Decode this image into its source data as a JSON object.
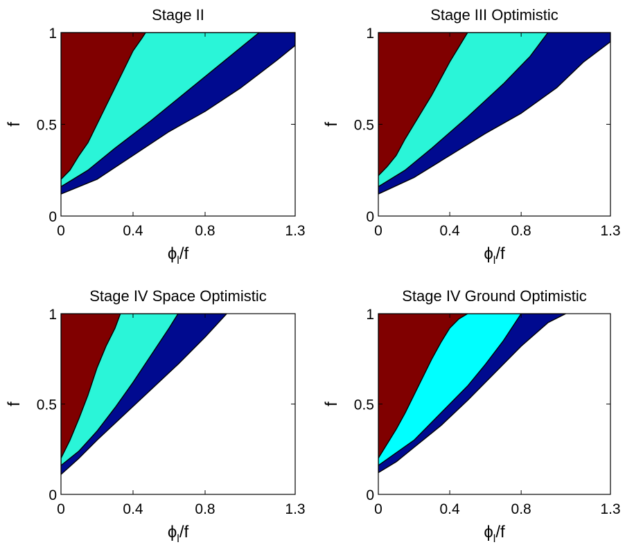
{
  "chart_data": [
    {
      "type": "contour",
      "title": "Stage II",
      "xlabel_main": "ϕ",
      "xlabel_sub": "l",
      "xlabel_rest": "/f",
      "ylabel": "f",
      "x_ticks": [
        "0",
        "0.4",
        "0.8",
        "1.3"
      ],
      "x_tick_values": [
        0,
        0.4,
        0.8,
        1.3
      ],
      "y_ticks": [
        "0",
        "0.5",
        "1"
      ],
      "y_tick_values": [
        0,
        0.5,
        1
      ],
      "xlim": [
        0,
        1.3
      ],
      "ylim": [
        0,
        1
      ],
      "colors": {
        "dark_red": "#800000",
        "cyan": "#2af5d8",
        "navy": "#000a8f",
        "background": "#ffffff"
      },
      "regions": [
        {
          "color": "dark_red",
          "boundary": [
            [
              0,
              0.2
            ],
            [
              0.05,
              0.25
            ],
            [
              0.1,
              0.33
            ],
            [
              0.15,
              0.4
            ],
            [
              0.2,
              0.5
            ],
            [
              0.25,
              0.6
            ],
            [
              0.3,
              0.7
            ],
            [
              0.35,
              0.8
            ],
            [
              0.4,
              0.9
            ],
            [
              0.45,
              0.97
            ],
            [
              0.47,
              1.0
            ]
          ]
        },
        {
          "color": "cyan",
          "boundary": [
            [
              0,
              0.16
            ],
            [
              0.15,
              0.25
            ],
            [
              0.3,
              0.37
            ],
            [
              0.5,
              0.52
            ],
            [
              0.7,
              0.68
            ],
            [
              0.9,
              0.84
            ],
            [
              1.1,
              1.0
            ]
          ]
        },
        {
          "color": "navy",
          "boundary": [
            [
              0,
              0.12
            ],
            [
              0.2,
              0.2
            ],
            [
              0.4,
              0.33
            ],
            [
              0.6,
              0.46
            ],
            [
              0.8,
              0.57
            ],
            [
              1.0,
              0.7
            ],
            [
              1.2,
              0.85
            ],
            [
              1.3,
              0.93
            ]
          ]
        }
      ]
    },
    {
      "type": "contour",
      "title": "Stage III Optimistic",
      "xlabel_main": "ϕ",
      "xlabel_sub": "l",
      "xlabel_rest": "/f",
      "ylabel": "f",
      "x_ticks": [
        "0",
        "0.4",
        "0.8",
        "1.3"
      ],
      "x_tick_values": [
        0,
        0.4,
        0.8,
        1.3
      ],
      "y_ticks": [
        "0",
        "0.5",
        "1"
      ],
      "y_tick_values": [
        0,
        0.5,
        1
      ],
      "xlim": [
        0,
        1.3
      ],
      "ylim": [
        0,
        1
      ],
      "colors": {
        "dark_red": "#800000",
        "cyan": "#2af5d8",
        "navy": "#000a8f",
        "background": "#ffffff"
      },
      "regions": [
        {
          "color": "dark_red",
          "boundary": [
            [
              0,
              0.22
            ],
            [
              0.05,
              0.27
            ],
            [
              0.1,
              0.33
            ],
            [
              0.15,
              0.42
            ],
            [
              0.2,
              0.5
            ],
            [
              0.25,
              0.58
            ],
            [
              0.3,
              0.66
            ],
            [
              0.35,
              0.75
            ],
            [
              0.4,
              0.84
            ],
            [
              0.45,
              0.92
            ],
            [
              0.5,
              1.0
            ]
          ]
        },
        {
          "color": "cyan",
          "boundary": [
            [
              0,
              0.16
            ],
            [
              0.15,
              0.25
            ],
            [
              0.3,
              0.37
            ],
            [
              0.5,
              0.54
            ],
            [
              0.7,
              0.72
            ],
            [
              0.85,
              0.87
            ],
            [
              0.95,
              1.0
            ]
          ]
        },
        {
          "color": "navy",
          "boundary": [
            [
              0,
              0.12
            ],
            [
              0.2,
              0.21
            ],
            [
              0.4,
              0.33
            ],
            [
              0.6,
              0.45
            ],
            [
              0.8,
              0.56
            ],
            [
              1.0,
              0.7
            ],
            [
              1.15,
              0.84
            ],
            [
              1.3,
              0.95
            ]
          ]
        }
      ]
    },
    {
      "type": "contour",
      "title": "Stage IV Space Optimistic",
      "xlabel_main": "ϕ",
      "xlabel_sub": "l",
      "xlabel_rest": "/f",
      "ylabel": "f",
      "x_ticks": [
        "0",
        "0.4",
        "0.8",
        "1.3"
      ],
      "x_tick_values": [
        0,
        0.4,
        0.8,
        1.3
      ],
      "y_ticks": [
        "0",
        "0.5",
        "1"
      ],
      "y_tick_values": [
        0,
        0.5,
        1
      ],
      "xlim": [
        0,
        1.3
      ],
      "ylim": [
        0,
        1
      ],
      "colors": {
        "dark_red": "#800000",
        "cyan": "#2af5d8",
        "navy": "#000a8f",
        "background": "#ffffff"
      },
      "regions": [
        {
          "color": "dark_red",
          "boundary": [
            [
              0,
              0.2
            ],
            [
              0.05,
              0.3
            ],
            [
              0.1,
              0.42
            ],
            [
              0.15,
              0.55
            ],
            [
              0.2,
              0.7
            ],
            [
              0.25,
              0.82
            ],
            [
              0.3,
              0.92
            ],
            [
              0.33,
              1.0
            ]
          ]
        },
        {
          "color": "cyan",
          "boundary": [
            [
              0,
              0.16
            ],
            [
              0.1,
              0.24
            ],
            [
              0.2,
              0.35
            ],
            [
              0.3,
              0.48
            ],
            [
              0.4,
              0.62
            ],
            [
              0.5,
              0.77
            ],
            [
              0.6,
              0.92
            ],
            [
              0.65,
              1.0
            ]
          ]
        },
        {
          "color": "navy",
          "boundary": [
            [
              0,
              0.11
            ],
            [
              0.1,
              0.2
            ],
            [
              0.2,
              0.3
            ],
            [
              0.35,
              0.44
            ],
            [
              0.5,
              0.58
            ],
            [
              0.65,
              0.72
            ],
            [
              0.8,
              0.87
            ],
            [
              0.92,
              1.0
            ]
          ]
        }
      ]
    },
    {
      "type": "contour",
      "title": "Stage IV Ground Optimistic",
      "xlabel_main": "ϕ",
      "xlabel_sub": "l",
      "xlabel_rest": "/f",
      "ylabel": "f",
      "x_ticks": [
        "0",
        "0.4",
        "0.8",
        "1.3"
      ],
      "x_tick_values": [
        0,
        0.4,
        0.8,
        1.3
      ],
      "y_ticks": [
        "0",
        "0.5",
        "1"
      ],
      "y_tick_values": [
        0,
        0.5,
        1
      ],
      "xlim": [
        0,
        1.3
      ],
      "ylim": [
        0,
        1
      ],
      "colors": {
        "dark_red": "#800000",
        "cyan": "#00ffff",
        "navy": "#000a8f",
        "background": "#ffffff"
      },
      "regions": [
        {
          "color": "dark_red",
          "boundary": [
            [
              0,
              0.2
            ],
            [
              0.05,
              0.28
            ],
            [
              0.1,
              0.36
            ],
            [
              0.15,
              0.45
            ],
            [
              0.2,
              0.55
            ],
            [
              0.25,
              0.65
            ],
            [
              0.3,
              0.75
            ],
            [
              0.35,
              0.84
            ],
            [
              0.4,
              0.92
            ],
            [
              0.45,
              0.97
            ],
            [
              0.5,
              1.0
            ]
          ]
        },
        {
          "color": "cyan",
          "boundary": [
            [
              0,
              0.16
            ],
            [
              0.1,
              0.23
            ],
            [
              0.2,
              0.3
            ],
            [
              0.3,
              0.4
            ],
            [
              0.4,
              0.5
            ],
            [
              0.5,
              0.6
            ],
            [
              0.6,
              0.72
            ],
            [
              0.7,
              0.85
            ],
            [
              0.8,
              1.0
            ]
          ]
        },
        {
          "color": "navy",
          "boundary": [
            [
              0,
              0.12
            ],
            [
              0.1,
              0.18
            ],
            [
              0.2,
              0.26
            ],
            [
              0.35,
              0.38
            ],
            [
              0.5,
              0.52
            ],
            [
              0.65,
              0.67
            ],
            [
              0.8,
              0.82
            ],
            [
              0.95,
              0.95
            ],
            [
              1.05,
              1.0
            ]
          ]
        }
      ]
    }
  ]
}
